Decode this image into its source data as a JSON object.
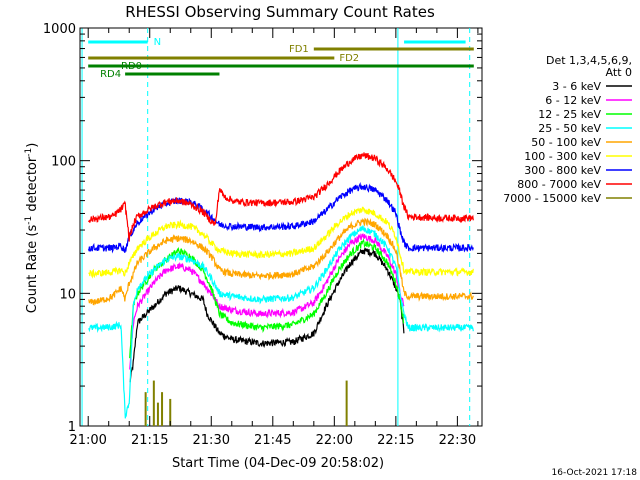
{
  "chart_data": {
    "type": "line",
    "title": "RHESSI Observing Summary Count Rates",
    "xlabel": "Start Time (04-Dec-09 20:58:02)",
    "ylabel_main": "Count Rate (s",
    "ylabel_sup1": "-1",
    "ylabel_mid": " detector",
    "ylabel_sup2": "-1",
    "ylabel_end": ")",
    "y_scale": "log",
    "ylim": [
      1,
      1000
    ],
    "xlim_minutes": [
      -2,
      96
    ],
    "x_ticks": [
      {
        "minutes": 0,
        "label": "21:00"
      },
      {
        "minutes": 15,
        "label": "21:15"
      },
      {
        "minutes": 30,
        "label": "21:30"
      },
      {
        "minutes": 45,
        "label": "21:45"
      },
      {
        "minutes": 60,
        "label": "22:00"
      },
      {
        "minutes": 75,
        "label": "22:15"
      },
      {
        "minutes": 90,
        "label": "22:30"
      }
    ],
    "y_ticks": [
      {
        "value": 1,
        "label": "1"
      },
      {
        "value": 10,
        "label": "10"
      },
      {
        "value": 100,
        "label": "100"
      },
      {
        "value": 1000,
        "label": "1000"
      }
    ],
    "legend_header": [
      "Det 1,3,4,5,6,9,",
      "Att 0"
    ],
    "legend_position": "top-right",
    "timestamp": "16-Oct-2021 17:18",
    "series": [
      {
        "name": "3 - 6 keV",
        "color": "#000000",
        "points": [
          [
            0,
            null
          ],
          [
            9,
            null
          ],
          [
            10,
            2
          ],
          [
            11,
            3
          ],
          [
            12,
            6
          ],
          [
            16,
            8
          ],
          [
            19,
            10
          ],
          [
            22,
            11
          ],
          [
            25,
            10
          ],
          [
            28,
            9
          ],
          [
            29,
            7
          ],
          [
            32,
            5
          ],
          [
            35,
            4.5
          ],
          [
            42,
            4.2
          ],
          [
            50,
            4.3
          ],
          [
            55,
            5
          ],
          [
            58,
            8
          ],
          [
            61,
            12
          ],
          [
            64,
            17
          ],
          [
            67,
            21
          ],
          [
            70,
            20
          ],
          [
            73,
            15
          ],
          [
            75,
            11
          ],
          [
            76,
            9
          ],
          [
            77,
            5
          ],
          [
            80,
            null
          ]
        ]
      },
      {
        "name": "6 - 12 keV",
        "color": "#ff00ff",
        "points": [
          [
            0,
            null
          ],
          [
            9,
            null
          ],
          [
            10,
            2.5
          ],
          [
            11,
            6
          ],
          [
            12,
            8
          ],
          [
            16,
            12
          ],
          [
            19,
            15
          ],
          [
            22,
            16
          ],
          [
            25,
            15
          ],
          [
            28,
            12
          ],
          [
            30,
            10
          ],
          [
            32,
            8
          ],
          [
            35,
            7.5
          ],
          [
            42,
            7
          ],
          [
            50,
            7.2
          ],
          [
            55,
            8.5
          ],
          [
            58,
            12
          ],
          [
            61,
            18
          ],
          [
            64,
            24
          ],
          [
            67,
            27
          ],
          [
            70,
            25
          ],
          [
            73,
            19
          ],
          [
            75,
            14
          ],
          [
            76,
            10
          ],
          [
            77,
            8
          ],
          [
            80,
            null
          ]
        ]
      },
      {
        "name": "12 - 25 keV",
        "color": "#00ff00",
        "points": [
          [
            0,
            null
          ],
          [
            9,
            null
          ],
          [
            10,
            3
          ],
          [
            11,
            8
          ],
          [
            12,
            10
          ],
          [
            16,
            15
          ],
          [
            19,
            18
          ],
          [
            22,
            21
          ],
          [
            25,
            19
          ],
          [
            28,
            15
          ],
          [
            30,
            11
          ],
          [
            32,
            7
          ],
          [
            35,
            6
          ],
          [
            42,
            5.5
          ],
          [
            50,
            5.8
          ],
          [
            55,
            7
          ],
          [
            58,
            10
          ],
          [
            61,
            15
          ],
          [
            64,
            20
          ],
          [
            67,
            24
          ],
          [
            70,
            22
          ],
          [
            73,
            17
          ],
          [
            75,
            12
          ],
          [
            76,
            9
          ],
          [
            77,
            6
          ],
          [
            80,
            null
          ]
        ]
      },
      {
        "name": "25 - 50 keV",
        "color": "#00ffff",
        "points": [
          [
            0,
            5.5
          ],
          [
            3,
            5.5
          ],
          [
            6,
            5.6
          ],
          [
            8,
            5.8
          ],
          [
            9,
            1.2
          ],
          [
            10,
            1.5
          ],
          [
            11,
            8
          ],
          [
            12,
            11
          ],
          [
            16,
            15
          ],
          [
            19,
            18
          ],
          [
            22,
            19
          ],
          [
            25,
            18
          ],
          [
            28,
            16
          ],
          [
            30,
            13
          ],
          [
            32,
            10
          ],
          [
            35,
            9.5
          ],
          [
            42,
            9
          ],
          [
            50,
            9.3
          ],
          [
            55,
            11
          ],
          [
            58,
            15
          ],
          [
            61,
            21
          ],
          [
            64,
            27
          ],
          [
            67,
            31
          ],
          [
            70,
            28
          ],
          [
            73,
            22
          ],
          [
            75,
            16
          ],
          [
            76,
            10
          ],
          [
            77,
            7
          ],
          [
            78,
            5.5
          ],
          [
            85,
            5.5
          ],
          [
            90,
            5.5
          ],
          [
            94,
            5.5
          ]
        ]
      },
      {
        "name": "50 - 100 keV",
        "color": "#ffa500",
        "points": [
          [
            0,
            8.5
          ],
          [
            3,
            8.8
          ],
          [
            6,
            9.5
          ],
          [
            8,
            11
          ],
          [
            9,
            9
          ],
          [
            10,
            12
          ],
          [
            11,
            14
          ],
          [
            12,
            17
          ],
          [
            16,
            22
          ],
          [
            19,
            25
          ],
          [
            22,
            26
          ],
          [
            25,
            25
          ],
          [
            28,
            22
          ],
          [
            30,
            19
          ],
          [
            32,
            15
          ],
          [
            35,
            14
          ],
          [
            42,
            13.5
          ],
          [
            50,
            14
          ],
          [
            55,
            16
          ],
          [
            58,
            20
          ],
          [
            61,
            26
          ],
          [
            64,
            32
          ],
          [
            67,
            35
          ],
          [
            70,
            33
          ],
          [
            73,
            27
          ],
          [
            75,
            21
          ],
          [
            76,
            15
          ],
          [
            77,
            10
          ],
          [
            78,
            9.5
          ],
          [
            85,
            9.5
          ],
          [
            90,
            9.5
          ],
          [
            94,
            9.5
          ]
        ]
      },
      {
        "name": "100 - 300 keV",
        "color": "#ffff00",
        "points": [
          [
            0,
            14
          ],
          [
            3,
            14.2
          ],
          [
            6,
            14.5
          ],
          [
            8,
            15
          ],
          [
            9,
            14
          ],
          [
            10,
            17
          ],
          [
            11,
            19
          ],
          [
            12,
            22
          ],
          [
            16,
            28
          ],
          [
            19,
            32
          ],
          [
            22,
            33
          ],
          [
            25,
            32
          ],
          [
            28,
            28
          ],
          [
            30,
            24
          ],
          [
            32,
            21
          ],
          [
            35,
            20
          ],
          [
            42,
            19.5
          ],
          [
            50,
            20
          ],
          [
            55,
            22
          ],
          [
            58,
            27
          ],
          [
            61,
            34
          ],
          [
            64,
            40
          ],
          [
            67,
            43
          ],
          [
            70,
            40
          ],
          [
            73,
            34
          ],
          [
            75,
            27
          ],
          [
            76,
            20
          ],
          [
            77,
            15
          ],
          [
            78,
            14.5
          ],
          [
            85,
            14.5
          ],
          [
            90,
            14.5
          ],
          [
            94,
            14.5
          ]
        ]
      },
      {
        "name": "300 - 800 keV",
        "color": "#0000ff",
        "points": [
          [
            0,
            22
          ],
          [
            3,
            22
          ],
          [
            6,
            22
          ],
          [
            8,
            23
          ],
          [
            9,
            21
          ],
          [
            10,
            27
          ],
          [
            11,
            30
          ],
          [
            12,
            34
          ],
          [
            16,
            43
          ],
          [
            19,
            48
          ],
          [
            22,
            50
          ],
          [
            25,
            49
          ],
          [
            28,
            43
          ],
          [
            30,
            38
          ],
          [
            32,
            33
          ],
          [
            35,
            32
          ],
          [
            42,
            31.5
          ],
          [
            50,
            32
          ],
          [
            55,
            35
          ],
          [
            58,
            42
          ],
          [
            61,
            52
          ],
          [
            64,
            60
          ],
          [
            67,
            64
          ],
          [
            70,
            60
          ],
          [
            73,
            50
          ],
          [
            75,
            40
          ],
          [
            76,
            30
          ],
          [
            77,
            24
          ],
          [
            78,
            22
          ],
          [
            85,
            22
          ],
          [
            90,
            22
          ],
          [
            94,
            22
          ]
        ]
      },
      {
        "name": "800 - 7000 keV",
        "color": "#ff0000",
        "points": [
          [
            0,
            36
          ],
          [
            3,
            37
          ],
          [
            6,
            38
          ],
          [
            8,
            43
          ],
          [
            9,
            47
          ],
          [
            10,
            26
          ],
          [
            11,
            33
          ],
          [
            12,
            38
          ],
          [
            16,
            45
          ],
          [
            19,
            49
          ],
          [
            22,
            50
          ],
          [
            25,
            47
          ],
          [
            28,
            41
          ],
          [
            30,
            35
          ],
          [
            31,
            33
          ],
          [
            32,
            62
          ],
          [
            33,
            54
          ],
          [
            36,
            49
          ],
          [
            42,
            48
          ],
          [
            50,
            49
          ],
          [
            55,
            53
          ],
          [
            58,
            65
          ],
          [
            61,
            82
          ],
          [
            64,
            100
          ],
          [
            67,
            110
          ],
          [
            70,
            104
          ],
          [
            73,
            86
          ],
          [
            75,
            70
          ],
          [
            76,
            58
          ],
          [
            77,
            45
          ],
          [
            78,
            38
          ],
          [
            85,
            37
          ],
          [
            90,
            37
          ],
          [
            94,
            37
          ]
        ]
      },
      {
        "name": "7000 - 15000 keV",
        "color": "#808000",
        "points": [
          [
            0,
            null
          ],
          [
            13,
            null
          ],
          [
            14,
            1.8
          ],
          [
            15,
            null
          ],
          [
            16,
            2.2
          ],
          [
            17,
            1.5
          ],
          [
            18,
            1.8
          ],
          [
            19,
            null
          ],
          [
            20,
            1.6
          ],
          [
            21,
            null
          ],
          [
            62,
            null
          ],
          [
            63,
            2.2
          ],
          [
            64,
            null
          ],
          [
            95,
            null
          ]
        ]
      }
    ],
    "annotations": {
      "N": {
        "label": "N",
        "color": "#00ffff",
        "start": 0,
        "end": 14.5,
        "start2": 77,
        "end2": 92
      },
      "FD1": {
        "label": "FD1",
        "color": "#808000",
        "start": 55,
        "end": 94
      },
      "FD2": {
        "label": "FD2",
        "color": "#808000",
        "start": 0,
        "end": 60
      },
      "RD0": {
        "label": "RD0",
        "color": "#008000",
        "start": 0,
        "end": 94
      },
      "RD4": {
        "label": "RD4",
        "color": "#008000",
        "start": 9,
        "end": 32
      }
    },
    "vlines_solid": [
      -1.5,
      75.5
    ],
    "vlines_dashed": [
      14.5,
      93
    ]
  }
}
